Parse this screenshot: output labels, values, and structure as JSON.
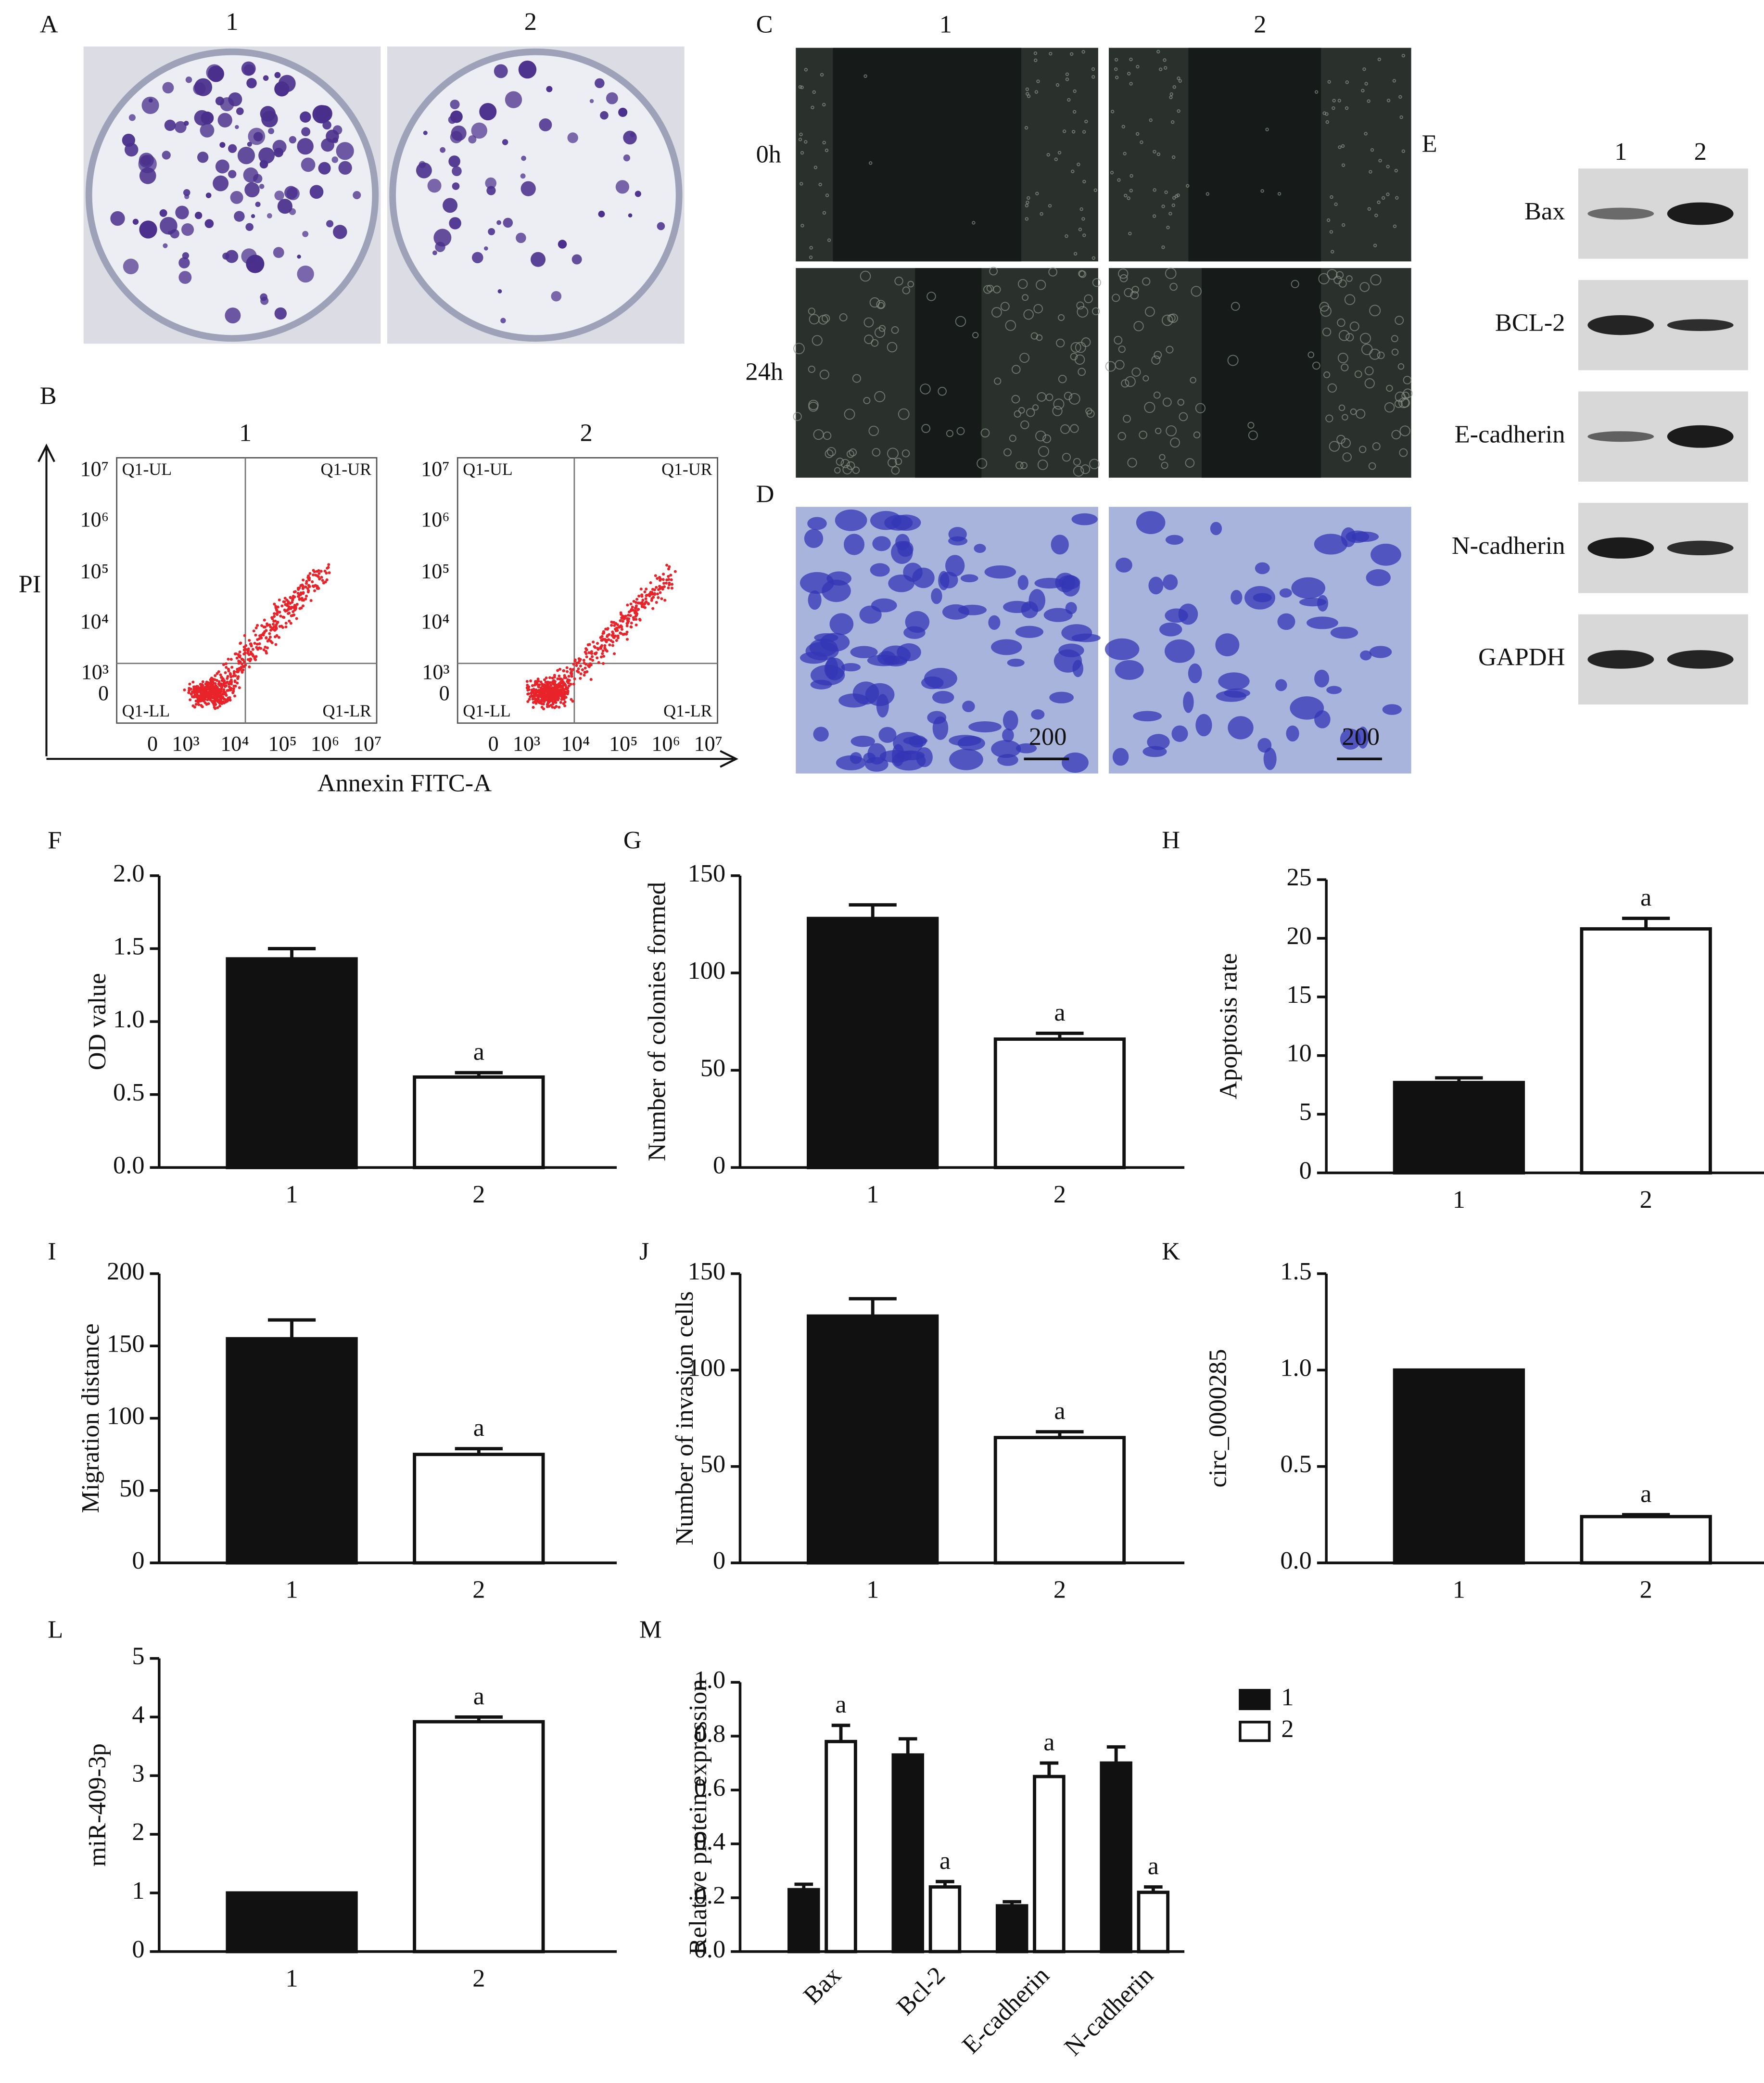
{
  "figure": {
    "A": {
      "panel_label": "A",
      "columns": [
        "1",
        "2"
      ]
    },
    "B": {
      "panel_label": "B",
      "columns": [
        "1",
        "2"
      ],
      "ylabel": "PI",
      "xlabel": "Annexin FITC-A",
      "yticks": [
        "10⁷",
        "10⁶",
        "10⁵",
        "10⁴",
        "10³",
        "0"
      ],
      "xticks": [
        "0",
        "10³",
        "10⁴",
        "10⁵",
        "10⁶",
        "10⁷"
      ],
      "quadrants": [
        "Q1-UL",
        "Q1-UR",
        "Q1-LL",
        "Q1-LR"
      ]
    },
    "C": {
      "panel_label": "C",
      "columns": [
        "1",
        "2"
      ],
      "rows": [
        "0h",
        "24h"
      ]
    },
    "D": {
      "panel_label": "D",
      "scale_bar": "200"
    },
    "E": {
      "panel_label": "E",
      "columns": [
        "1",
        "2"
      ],
      "bands": [
        "Bax",
        "BCL-2",
        "E-cadherin",
        "N-cadherin",
        "GAPDH"
      ]
    }
  },
  "chart_data": [
    {
      "type": "bar",
      "panel_label": "F",
      "ylabel": "OD value",
      "categories": [
        "1",
        "2"
      ],
      "values": [
        1.43,
        0.62
      ],
      "errors": [
        0.07,
        0.03
      ],
      "annotations": [
        null,
        "a"
      ],
      "colors": [
        "#111111",
        "#ffffff"
      ],
      "ylim": [
        0,
        2
      ],
      "yticks": [
        {
          "value": 0,
          "label": "0.0"
        },
        0.5,
        {
          "value": 1,
          "label": "1.0"
        },
        1.5,
        {
          "value": 2,
          "label": "2.0"
        }
      ]
    },
    {
      "type": "bar",
      "panel_label": "G",
      "ylabel": "Number of colonies formed",
      "categories": [
        "1",
        "2"
      ],
      "values": [
        128,
        66
      ],
      "errors": [
        7,
        3
      ],
      "annotations": [
        null,
        "a"
      ],
      "colors": [
        "#111111",
        "#ffffff"
      ],
      "ylim": [
        0,
        150
      ],
      "yticks": [
        0,
        50,
        100,
        150
      ]
    },
    {
      "type": "bar",
      "panel_label": "H",
      "ylabel": "Apoptosis rate",
      "categories": [
        "1",
        "2"
      ],
      "values": [
        7.7,
        20.8
      ],
      "errors": [
        0.4,
        0.9
      ],
      "annotations": [
        null,
        "a"
      ],
      "colors": [
        "#111111",
        "#ffffff"
      ],
      "ylim": [
        0,
        25
      ],
      "yticks": [
        0,
        5,
        10,
        15,
        20,
        25
      ]
    },
    {
      "type": "bar",
      "panel_label": "I",
      "ylabel": "Migration distance",
      "categories": [
        "1",
        "2"
      ],
      "values": [
        155,
        75
      ],
      "errors": [
        13,
        4
      ],
      "annotations": [
        null,
        "a"
      ],
      "colors": [
        "#111111",
        "#ffffff"
      ],
      "ylim": [
        0,
        200
      ],
      "yticks": [
        0,
        50,
        100,
        150,
        200
      ]
    },
    {
      "type": "bar",
      "panel_label": "J",
      "ylabel": "Number of invasion cells",
      "categories": [
        "1",
        "2"
      ],
      "values": [
        128,
        65
      ],
      "errors": [
        9,
        3
      ],
      "annotations": [
        null,
        "a"
      ],
      "colors": [
        "#111111",
        "#ffffff"
      ],
      "ylim": [
        0,
        150
      ],
      "yticks": [
        0,
        50,
        100,
        150
      ]
    },
    {
      "type": "bar",
      "panel_label": "K",
      "ylabel": "circ_0000285",
      "categories": [
        "1",
        "2"
      ],
      "values": [
        1.0,
        0.24
      ],
      "errors": [
        null,
        0.01
      ],
      "annotations": [
        null,
        "a"
      ],
      "colors": [
        "#111111",
        "#ffffff"
      ],
      "ylim": [
        0,
        1.5
      ],
      "yticks": [
        {
          "value": 0,
          "label": "0.0"
        },
        0.5,
        {
          "value": 1,
          "label": "1.0"
        },
        1.5
      ]
    },
    {
      "type": "bar",
      "panel_label": "L",
      "ylabel": "miR-409-3p",
      "categories": [
        "1",
        "2"
      ],
      "values": [
        1.0,
        3.92
      ],
      "errors": [
        null,
        0.08
      ],
      "annotations": [
        null,
        "a"
      ],
      "colors": [
        "#111111",
        "#ffffff"
      ],
      "ylim": [
        0,
        5
      ],
      "yticks": [
        0,
        1,
        2,
        3,
        4,
        5
      ]
    },
    {
      "type": "grouped_bar",
      "panel_label": "M",
      "ylabel": "Relative protein expression",
      "categories": [
        "Bax",
        "Bcl-2",
        "E-cadherin",
        "N-cadherin"
      ],
      "series": [
        {
          "name": "1",
          "color": "#111111",
          "values": [
            0.23,
            0.73,
            0.17,
            0.7
          ],
          "errors": [
            0.02,
            0.06,
            0.015,
            0.06
          ]
        },
        {
          "name": "2",
          "color": "#ffffff",
          "values": [
            0.78,
            0.24,
            0.65,
            0.22
          ],
          "errors": [
            0.06,
            0.02,
            0.05,
            0.02
          ],
          "annotations": [
            "a",
            "a",
            "a",
            "a"
          ]
        }
      ],
      "ylim": [
        0,
        1
      ],
      "yticks": [
        {
          "value": 0,
          "label": "0.0"
        },
        0.2,
        0.4,
        0.6,
        0.8,
        {
          "value": 1,
          "label": "1.0"
        }
      ]
    }
  ]
}
